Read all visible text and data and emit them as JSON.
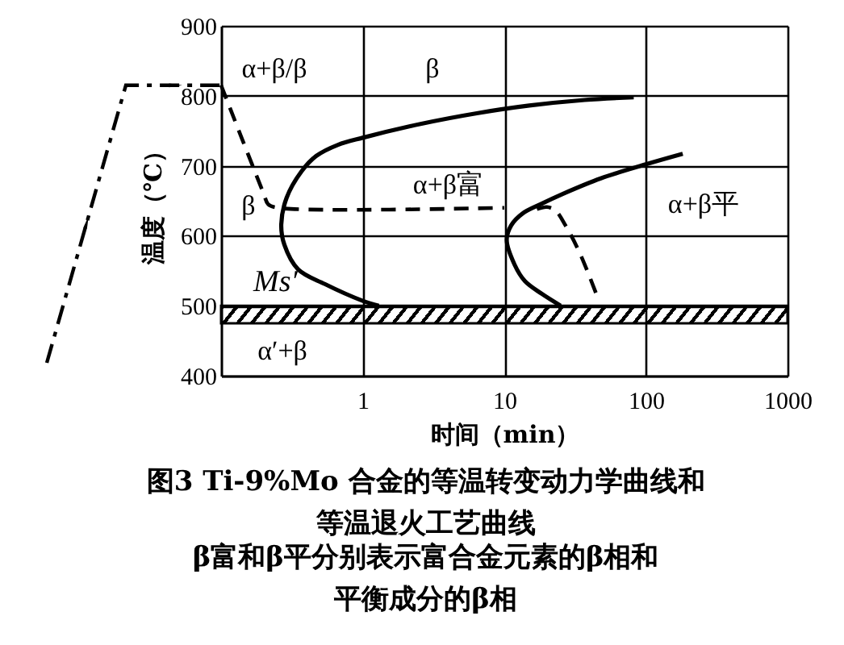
{
  "chart_data": {
    "type": "line",
    "title": "图3  Ti-9%Mo 合金的等温转变动力学曲线和等温退火工艺曲线",
    "subtitle": "β富和β平分别表示富合金元素的β相和平衡成分的β相",
    "xlabel": "时间（min）",
    "ylabel": "温度（℃）",
    "log": "x",
    "xlim": [
      0.1,
      1000
    ],
    "xticks": [
      1,
      10,
      100,
      1000
    ],
    "ylim": [
      400,
      900
    ],
    "yticks": [
      400,
      500,
      600,
      700,
      800,
      900
    ],
    "grid": true,
    "series": [
      {
        "color": "#000000",
        "line_style": "solid",
        "x": [
          1.3,
          1.0,
          0.54,
          0.35,
          0.28,
          0.266,
          0.29,
          0.37,
          0.47,
          0.67,
          1,
          2.6,
          6.4,
          15,
          37,
          82
        ],
        "values": [
          500,
          507,
          531,
          552,
          587,
          616,
          654,
          692,
          714,
          730,
          740,
          760,
          775,
          786,
          794,
          798
        ]
      },
      {
        "color": "#000000",
        "line_style": "solid",
        "x": [
          25,
          18.4,
          14,
          11.8,
          10.4,
          11.2,
          13.5,
          18,
          26,
          48,
          100,
          182
        ],
        "values": [
          500,
          517,
          535,
          559,
          594,
          615,
          632,
          645,
          660,
          682,
          702,
          717
        ]
      },
      {
        "color": "#000000",
        "line_style": "dashed",
        "x": [
          0.1,
          0.2,
          0.215,
          0.25,
          10
        ],
        "values": [
          815,
          660,
          645,
          640,
          640
        ]
      },
      {
        "color": "#000000",
        "line_style": "dashed",
        "x": [
          17,
          20,
          23,
          27,
          34,
          45
        ],
        "values": [
          638,
          641,
          636,
          615,
          576,
          515
        ]
      }
    ],
    "bands": [
      {
        "axis": "y",
        "from": 475,
        "to": 500,
        "label": "Ms′",
        "color": "#000000"
      }
    ],
    "annotations": [
      "α+β/β",
      "β",
      "β",
      "α+β富",
      "α+β平",
      "α′+β"
    ]
  }
}
